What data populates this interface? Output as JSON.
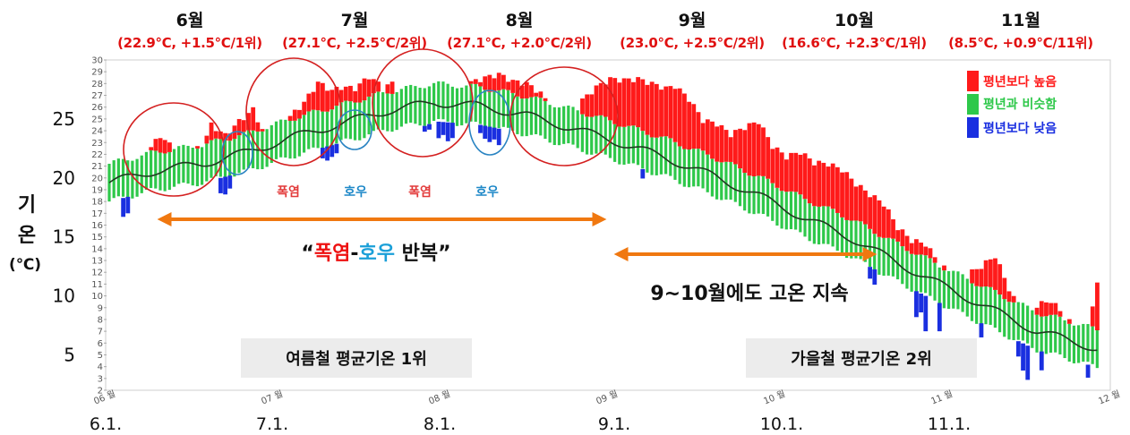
{
  "chart_data": {
    "type": "bar",
    "y_label": "기온",
    "y_unit": "(℃)",
    "ylim": [
      2,
      30
    ],
    "y_ticks_small": [
      2,
      3,
      4,
      5,
      6,
      7,
      8,
      9,
      10,
      11,
      12,
      13,
      14,
      15,
      16,
      17,
      18,
      19,
      20,
      21,
      22,
      23,
      24,
      25,
      26,
      27,
      28,
      29,
      30
    ],
    "y_ticks_big": [
      5,
      10,
      15,
      20,
      25
    ],
    "x_ticks_small": [
      "06 월",
      "07 월",
      "08 월",
      "09 월",
      "10 월",
      "11 월",
      "12 월"
    ],
    "x_ticks_big": [
      "6.1.",
      "7.1.",
      "8.1.",
      "9.1.",
      "10.1.",
      "11.1."
    ],
    "months": [
      {
        "name": "6월",
        "stat": "(22.9℃, +1.5℃/1위)"
      },
      {
        "name": "7월",
        "stat": "(27.1℃, +2.5℃/2위)"
      },
      {
        "name": "8월",
        "stat": "(27.1℃, +2.0℃/2위)"
      },
      {
        "name": "9월",
        "stat": "(23.0℃, +2.5℃/2위)"
      },
      {
        "name": "10월",
        "stat": "(16.6℃, +2.3℃/1위)"
      },
      {
        "name": "11월",
        "stat": "(8.5℃, +0.9℃/11위)"
      }
    ],
    "legend": [
      {
        "label": "평년보다 높음",
        "color": "#ff1a1a"
      },
      {
        "label": "평년과 비슷함",
        "color": "#2ec84a"
      },
      {
        "label": "평년보다 낮음",
        "color": "#1a2fe0"
      }
    ],
    "events": [
      {
        "label": "폭염",
        "kind": "hot"
      },
      {
        "label": "호우",
        "kind": "rain"
      },
      {
        "label": "폭염",
        "kind": "hot"
      },
      {
        "label": "호우",
        "kind": "rain"
      }
    ],
    "annotations": {
      "summer_repeat": {
        "open": "“",
        "hot": "폭염",
        "dash": "-",
        "rain": "호우",
        "rest": " 반복”"
      },
      "autumn_warm": "9~10월에도 고온 지속",
      "summer_rank": "여름철 평균기온 1위",
      "autumn_rank": "가을철 평균기온 2위"
    },
    "normal_mean_keypoints": [
      [
        0,
        19.6
      ],
      [
        10,
        20.6
      ],
      [
        20,
        21.2
      ],
      [
        30,
        22.2
      ],
      [
        40,
        23.5
      ],
      [
        50,
        24.6
      ],
      [
        60,
        25.7
      ],
      [
        70,
        26.4
      ],
      [
        80,
        26.1
      ],
      [
        90,
        25.3
      ],
      [
        100,
        24.2
      ],
      [
        110,
        23.0
      ],
      [
        120,
        21.7
      ],
      [
        130,
        20.2
      ],
      [
        140,
        18.5
      ],
      [
        150,
        16.6
      ],
      [
        160,
        14.9
      ],
      [
        170,
        12.8
      ],
      [
        180,
        10.8
      ],
      [
        190,
        8.9
      ],
      [
        200,
        7.0
      ],
      [
        210,
        5.9
      ],
      [
        213,
        5.5
      ]
    ],
    "daily_max_anomaly_keypoints": [
      [
        0,
        20.0
      ],
      [
        6,
        21.2
      ],
      [
        9,
        22.6
      ],
      [
        11,
        23.6
      ],
      [
        14,
        22.4
      ],
      [
        17,
        22.3
      ],
      [
        20,
        22.6
      ],
      [
        22,
        24.5
      ],
      [
        25,
        23.6
      ],
      [
        28,
        24.8
      ],
      [
        31,
        25.8
      ],
      [
        33,
        24.1
      ],
      [
        35,
        23.2
      ],
      [
        37,
        22.2
      ],
      [
        39,
        25.2
      ],
      [
        42,
        26.4
      ],
      [
        45,
        28.1
      ],
      [
        48,
        27.4
      ],
      [
        50,
        27.7
      ],
      [
        53,
        27.6
      ],
      [
        56,
        28.6
      ],
      [
        59,
        27.7
      ],
      [
        61,
        28.0
      ],
      [
        64,
        26.7
      ],
      [
        66,
        24.5
      ],
      [
        69,
        24.0
      ],
      [
        72,
        25.6
      ],
      [
        75,
        26.8
      ],
      [
        78,
        28.1
      ],
      [
        81,
        28.5
      ],
      [
        84,
        28.8
      ],
      [
        87,
        28.2
      ],
      [
        90,
        28.0
      ],
      [
        93,
        27.2
      ],
      [
        96,
        25.5
      ],
      [
        99,
        25.0
      ],
      [
        102,
        26.6
      ],
      [
        105,
        27.7
      ],
      [
        108,
        28.4
      ],
      [
        111,
        28.3
      ],
      [
        114,
        28.4
      ],
      [
        117,
        28.0
      ],
      [
        120,
        27.6
      ],
      [
        122,
        27.8
      ],
      [
        125,
        26.7
      ],
      [
        128,
        24.9
      ],
      [
        131,
        24.6
      ],
      [
        134,
        23.7
      ],
      [
        137,
        24.3
      ],
      [
        140,
        24.8
      ],
      [
        143,
        22.7
      ],
      [
        146,
        21.8
      ],
      [
        149,
        22.2
      ],
      [
        152,
        21.3
      ],
      [
        155,
        21.2
      ],
      [
        158,
        20.7
      ],
      [
        161,
        19.5
      ],
      [
        164,
        18.6
      ],
      [
        167,
        17.8
      ],
      [
        170,
        15.8
      ],
      [
        173,
        14.7
      ],
      [
        176,
        14.4
      ],
      [
        179,
        12.7
      ],
      [
        182,
        11.7
      ],
      [
        185,
        11.8
      ],
      [
        188,
        12.5
      ],
      [
        191,
        13.4
      ],
      [
        194,
        10.6
      ],
      [
        197,
        8.1
      ],
      [
        200,
        9.2
      ],
      [
        203,
        9.6
      ],
      [
        206,
        8.3
      ],
      [
        209,
        6.8
      ],
      [
        211,
        7.7
      ],
      [
        213,
        10.9
      ]
    ]
  }
}
